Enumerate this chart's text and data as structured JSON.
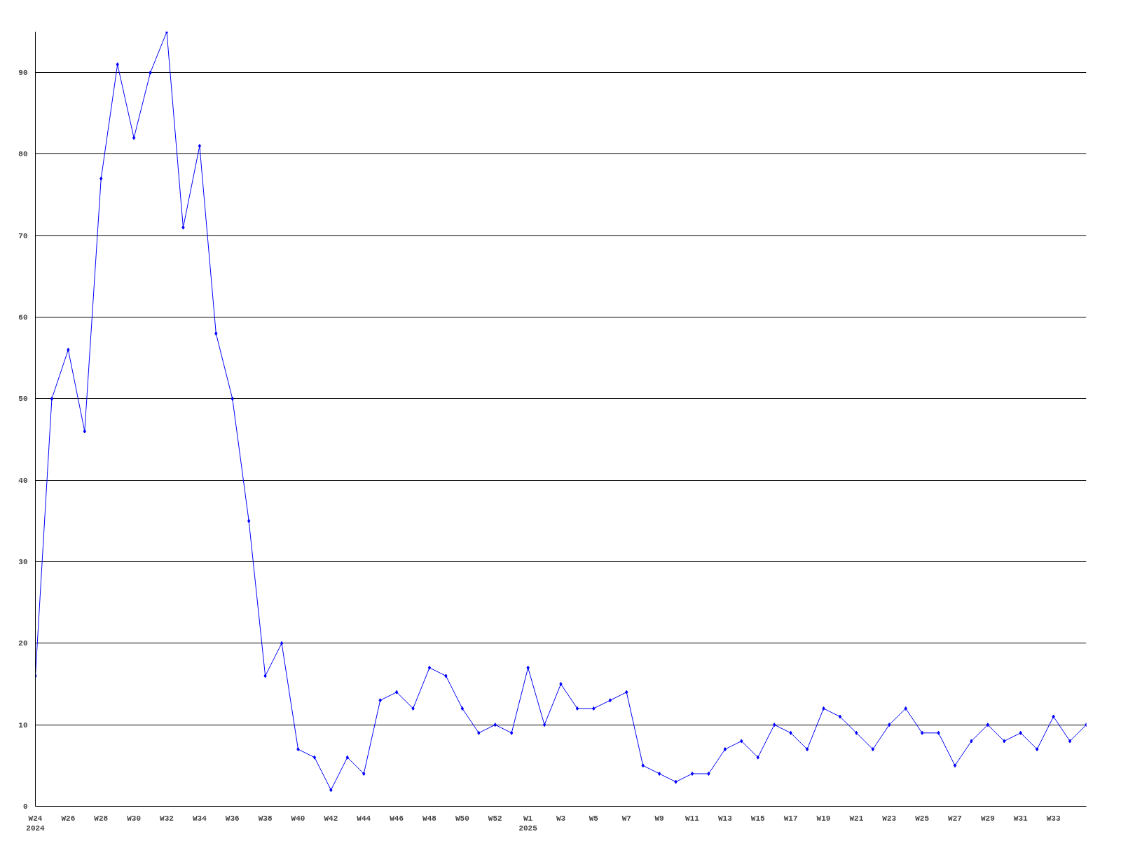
{
  "chart_data": {
    "type": "line",
    "categories": [
      "W24\n2024",
      null,
      "W26",
      null,
      "W28",
      null,
      "W30",
      null,
      "W32",
      null,
      "W34",
      null,
      "W36",
      null,
      "W38",
      null,
      "W40",
      null,
      "W42",
      null,
      "W44",
      null,
      "W46",
      null,
      "W48",
      null,
      "W50",
      null,
      "W52",
      null,
      "W1\n2025",
      null,
      "W3",
      null,
      "W5",
      null,
      "W7",
      null,
      "W9",
      null,
      "W11",
      null,
      "W13",
      null,
      "W15",
      null,
      "W17",
      null,
      "W19",
      null,
      "W21",
      null,
      "W23",
      null,
      "W25",
      null,
      "W27",
      null,
      "W29",
      null,
      "W31",
      null,
      "W33",
      null,
      null
    ],
    "series": [
      {
        "color": "#0000ff",
        "values": [
          16,
          50,
          56,
          46,
          77,
          91,
          82,
          90,
          95,
          71,
          81,
          58,
          50,
          35,
          16,
          20,
          7,
          6,
          2,
          6,
          4,
          13,
          14,
          12,
          17,
          16,
          12,
          9,
          10,
          9,
          17,
          10,
          15,
          12,
          12,
          13,
          14,
          5,
          4,
          3,
          4,
          4,
          7,
          8,
          6,
          10,
          9,
          7,
          12,
          11,
          9,
          7,
          10,
          12,
          9,
          9,
          5,
          8,
          10,
          8,
          9,
          7,
          11,
          8,
          10
        ]
      }
    ],
    "ylim": [
      0,
      95
    ],
    "yticks": [
      0,
      10,
      20,
      30,
      40,
      50,
      60,
      70,
      80,
      90
    ],
    "grid": "y",
    "marker": "diamond",
    "line_style": "solid"
  }
}
